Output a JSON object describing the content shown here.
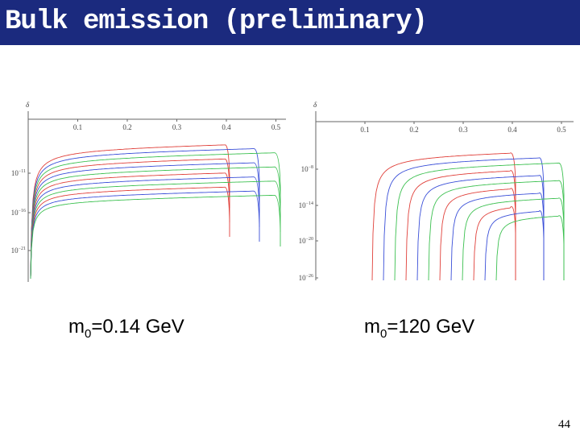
{
  "header": {
    "title": "Bulk emission (preliminary)"
  },
  "plots": [
    {
      "y_label": "δ",
      "xticks": [
        "0.1",
        "0.2",
        "0.3",
        "0.4",
        "0.5"
      ],
      "yticks": [
        {
          "base": "10",
          "exponent": "−11"
        },
        {
          "base": "10",
          "exponent": "−16"
        },
        {
          "base": "10",
          "exponent": "−21"
        }
      ],
      "caption": {
        "symbol": "m",
        "subscript": "0",
        "text": "=0.14 GeV"
      }
    },
    {
      "y_label": "δ",
      "xticks": [
        "0.1",
        "0.2",
        "0.3",
        "0.4",
        "0.5"
      ],
      "yticks": [
        {
          "base": "10",
          "exponent": "−8"
        },
        {
          "base": "10",
          "exponent": "−14"
        },
        {
          "base": "10",
          "exponent": "−20"
        },
        {
          "base": "10",
          "exponent": "−26"
        }
      ],
      "caption": {
        "symbol": "m",
        "subscript": "0",
        "text": "=120 GeV"
      }
    }
  ],
  "page_number": "44"
}
